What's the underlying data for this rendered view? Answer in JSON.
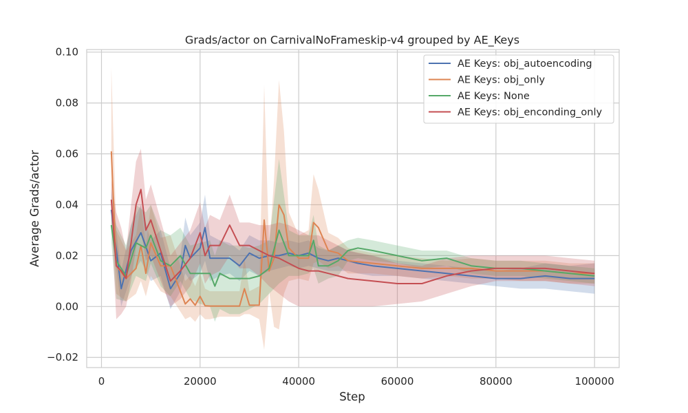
{
  "chart_data": {
    "type": "line",
    "title": "Grads/actor on CarnivalNoFrameskip-v4 grouped by AE_Keys",
    "xlabel": "Step",
    "ylabel": "Average Grads/actor",
    "xlim": [
      -3000,
      105000
    ],
    "ylim": [
      -0.024,
      0.101
    ],
    "xticks": [
      0,
      20000,
      40000,
      60000,
      80000,
      100000
    ],
    "xtick_labels": [
      "0",
      "20000",
      "40000",
      "60000",
      "80000",
      "100000"
    ],
    "yticks": [
      -0.02,
      0.0,
      0.02,
      0.04,
      0.06,
      0.08,
      0.1
    ],
    "ytick_labels": [
      "−0.02",
      "0.00",
      "0.02",
      "0.04",
      "0.06",
      "0.08",
      "0.10"
    ],
    "grid": true,
    "legend_position": "top-right",
    "series": [
      {
        "name": "AE Keys: obj_autoencoding",
        "color": "#4c72b0",
        "x": [
          2000,
          4000,
          6000,
          8000,
          10000,
          12000,
          14000,
          16000,
          17000,
          18000,
          20000,
          21000,
          22000,
          24000,
          26000,
          28000,
          30000,
          32000,
          34000,
          36000,
          38000,
          40000,
          42000,
          44000,
          46000,
          48000,
          50000,
          52000,
          55000,
          60000,
          65000,
          70000,
          75000,
          80000,
          85000,
          90000,
          95000,
          100000
        ],
        "y": [
          0.038,
          0.007,
          0.022,
          0.029,
          0.018,
          0.021,
          0.007,
          0.013,
          0.024,
          0.019,
          0.023,
          0.031,
          0.019,
          0.019,
          0.019,
          0.016,
          0.021,
          0.019,
          0.02,
          0.02,
          0.021,
          0.02,
          0.021,
          0.019,
          0.018,
          0.019,
          0.018,
          0.017,
          0.016,
          0.015,
          0.014,
          0.013,
          0.012,
          0.011,
          0.011,
          0.012,
          0.011,
          0.011
        ],
        "lower": [
          0.03,
          0.0,
          0.012,
          0.018,
          0.01,
          0.012,
          -0.001,
          0.006,
          0.013,
          0.01,
          0.013,
          0.018,
          0.01,
          0.012,
          0.013,
          0.01,
          0.014,
          0.012,
          0.014,
          0.015,
          0.016,
          0.015,
          0.016,
          0.015,
          0.014,
          0.014,
          0.014,
          0.013,
          0.012,
          0.012,
          0.011,
          0.01,
          0.009,
          0.008,
          0.007,
          0.007,
          0.006,
          0.005
        ],
        "upper": [
          0.046,
          0.014,
          0.032,
          0.04,
          0.026,
          0.03,
          0.015,
          0.02,
          0.035,
          0.028,
          0.033,
          0.044,
          0.028,
          0.026,
          0.025,
          0.022,
          0.028,
          0.026,
          0.026,
          0.025,
          0.026,
          0.025,
          0.026,
          0.023,
          0.022,
          0.024,
          0.022,
          0.021,
          0.02,
          0.018,
          0.017,
          0.016,
          0.015,
          0.014,
          0.015,
          0.017,
          0.016,
          0.017
        ]
      },
      {
        "name": "AE Keys: obj_only",
        "color": "#dd8452",
        "x": [
          2000,
          3000,
          5000,
          7000,
          8000,
          9000,
          10000,
          12000,
          14000,
          16000,
          17000,
          18000,
          19000,
          20000,
          21000,
          22000,
          24000,
          26000,
          28000,
          29000,
          30000,
          32000,
          33000,
          34000,
          35000,
          36000,
          37000,
          38000,
          40000,
          42000,
          43000,
          44000,
          46000,
          48000,
          50000,
          55000,
          60000,
          65000,
          70000,
          75000,
          80000,
          85000,
          90000,
          95000,
          100000
        ],
        "y": [
          0.061,
          0.016,
          0.011,
          0.015,
          0.024,
          0.013,
          0.025,
          0.016,
          0.016,
          0.006,
          0.001,
          0.003,
          0.0005,
          0.004,
          0.0003,
          0.0002,
          0.0002,
          0.0002,
          0.0002,
          0.007,
          0.0005,
          0.0005,
          0.034,
          0.014,
          0.019,
          0.04,
          0.036,
          0.023,
          0.019,
          0.019,
          0.033,
          0.031,
          0.022,
          0.021,
          0.018,
          0.017,
          0.016,
          0.015,
          0.015,
          0.015,
          0.014,
          0.014,
          0.014,
          0.013,
          0.013
        ],
        "lower": [
          0.04,
          0.005,
          0.002,
          0.005,
          0.01,
          0.004,
          0.012,
          0.006,
          0.004,
          -0.002,
          -0.005,
          -0.004,
          -0.006,
          -0.003,
          -0.005,
          -0.005,
          -0.004,
          -0.004,
          -0.004,
          -0.003,
          -0.003,
          -0.005,
          -0.017,
          0.006,
          -0.008,
          -0.009,
          0.005,
          0.01,
          0.011,
          0.01,
          0.017,
          0.018,
          0.015,
          0.016,
          0.013,
          0.013,
          0.012,
          0.011,
          0.012,
          0.011,
          0.011,
          0.01,
          0.01,
          0.009,
          0.009
        ],
        "upper": [
          0.094,
          0.03,
          0.022,
          0.028,
          0.04,
          0.024,
          0.04,
          0.027,
          0.028,
          0.016,
          0.01,
          0.012,
          0.008,
          0.013,
          0.007,
          0.006,
          0.006,
          0.006,
          0.006,
          0.019,
          0.006,
          0.008,
          0.087,
          0.022,
          0.05,
          0.089,
          0.069,
          0.037,
          0.028,
          0.03,
          0.052,
          0.046,
          0.029,
          0.027,
          0.023,
          0.021,
          0.02,
          0.019,
          0.018,
          0.019,
          0.018,
          0.018,
          0.018,
          0.017,
          0.017
        ]
      },
      {
        "name": "AE Keys: None",
        "color": "#55a868",
        "x": [
          2000,
          3000,
          5000,
          7000,
          9000,
          10000,
          12000,
          14000,
          16000,
          18000,
          20000,
          22000,
          23000,
          24000,
          26000,
          28000,
          30000,
          32000,
          34000,
          36000,
          38000,
          40000,
          42000,
          43000,
          44000,
          46000,
          48000,
          50000,
          52000,
          55000,
          60000,
          65000,
          70000,
          75000,
          80000,
          85000,
          90000,
          95000,
          100000
        ],
        "y": [
          0.032,
          0.018,
          0.012,
          0.025,
          0.023,
          0.028,
          0.018,
          0.016,
          0.02,
          0.013,
          0.013,
          0.013,
          0.008,
          0.013,
          0.011,
          0.011,
          0.011,
          0.012,
          0.015,
          0.03,
          0.02,
          0.02,
          0.02,
          0.026,
          0.016,
          0.016,
          0.018,
          0.022,
          0.023,
          0.022,
          0.02,
          0.018,
          0.019,
          0.016,
          0.015,
          0.015,
          0.014,
          0.013,
          0.012
        ],
        "lower": [
          0.025,
          0.003,
          0.002,
          0.012,
          0.01,
          0.017,
          0.008,
          0.004,
          0.01,
          0.003,
          0.001,
          0.0,
          -0.006,
          -0.001,
          -0.003,
          -0.003,
          -0.001,
          0.001,
          0.005,
          0.009,
          0.012,
          0.012,
          0.013,
          0.015,
          0.009,
          0.011,
          0.012,
          0.018,
          0.019,
          0.018,
          0.017,
          0.015,
          0.016,
          0.013,
          0.012,
          0.012,
          0.011,
          0.01,
          0.009
        ],
        "upper": [
          0.04,
          0.032,
          0.024,
          0.04,
          0.037,
          0.04,
          0.03,
          0.028,
          0.031,
          0.024,
          0.025,
          0.026,
          0.02,
          0.026,
          0.024,
          0.024,
          0.023,
          0.024,
          0.026,
          0.058,
          0.03,
          0.028,
          0.028,
          0.036,
          0.024,
          0.022,
          0.024,
          0.026,
          0.027,
          0.026,
          0.024,
          0.022,
          0.022,
          0.019,
          0.018,
          0.018,
          0.017,
          0.016,
          0.015
        ]
      },
      {
        "name": "AE Keys: obj_enconding_only",
        "color": "#c44e52",
        "x": [
          2000,
          3000,
          4000,
          5000,
          6000,
          7000,
          8000,
          9000,
          10000,
          12000,
          14000,
          16000,
          18000,
          20000,
          21000,
          22000,
          24000,
          26000,
          28000,
          30000,
          32000,
          34000,
          36000,
          38000,
          40000,
          42000,
          44000,
          46000,
          48000,
          50000,
          55000,
          60000,
          65000,
          70000,
          75000,
          80000,
          85000,
          90000,
          95000,
          100000
        ],
        "y": [
          0.042,
          0.016,
          0.014,
          0.011,
          0.025,
          0.04,
          0.046,
          0.03,
          0.034,
          0.022,
          0.01,
          0.014,
          0.019,
          0.029,
          0.02,
          0.024,
          0.024,
          0.032,
          0.024,
          0.024,
          0.022,
          0.02,
          0.019,
          0.017,
          0.015,
          0.014,
          0.014,
          0.013,
          0.012,
          0.011,
          0.01,
          0.009,
          0.009,
          0.012,
          0.014,
          0.015,
          0.015,
          0.015,
          0.014,
          0.013
        ],
        "lower": [
          0.034,
          -0.005,
          -0.003,
          0.0,
          0.01,
          0.023,
          0.03,
          0.018,
          0.02,
          0.01,
          0.0,
          0.003,
          0.008,
          0.017,
          0.009,
          0.012,
          0.014,
          0.02,
          0.015,
          0.015,
          0.012,
          0.008,
          0.005,
          0.002,
          0.0,
          0.0,
          0.0,
          0.0,
          0.0,
          0.0,
          0.0,
          0.001,
          0.002,
          0.005,
          0.008,
          0.01,
          0.01,
          0.01,
          0.009,
          0.008
        ],
        "upper": [
          0.05,
          0.037,
          0.031,
          0.022,
          0.04,
          0.057,
          0.062,
          0.042,
          0.048,
          0.034,
          0.02,
          0.025,
          0.03,
          0.041,
          0.031,
          0.036,
          0.034,
          0.044,
          0.033,
          0.033,
          0.032,
          0.032,
          0.033,
          0.032,
          0.03,
          0.028,
          0.028,
          0.026,
          0.024,
          0.022,
          0.02,
          0.017,
          0.016,
          0.019,
          0.02,
          0.02,
          0.02,
          0.02,
          0.019,
          0.018
        ]
      }
    ]
  }
}
